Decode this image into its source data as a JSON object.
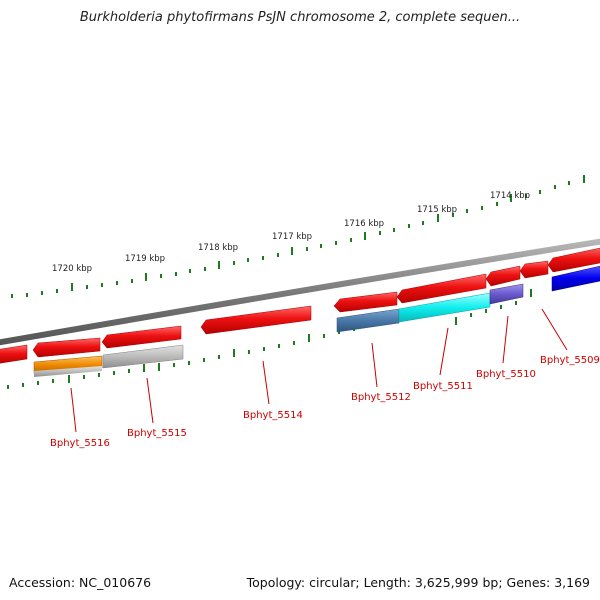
{
  "title": "Burkholderia phytofirmans PsJN chromosome 2, complete sequen...",
  "footer": {
    "accession": "Accession: NC_010676",
    "summary": "Topology: circular; Length: 3,625,999 bp; Genes: 3,169"
  },
  "colors": {
    "backbone": "#7a7a7a",
    "ticks": "#1e7a1e",
    "gene_label": "#cc0000",
    "red_gene": "#ee1111",
    "orange_gene": "#ee8800",
    "grey_gene": "#b8b8b8",
    "steelblue_gene": "#4a78a8",
    "cyan_gene": "#11eeee",
    "slateblue_gene": "#6a5acd",
    "blue_gene": "#0000ee"
  },
  "scale_labels": [
    "1720 kbp",
    "1719 kbp",
    "1718 kbp",
    "1717 kbp",
    "1716 kbp",
    "1715 kbp",
    "1714 kbp"
  ],
  "gene_labels": [
    "Bphyt_5516",
    "Bphyt_5515",
    "Bphyt_5514",
    "Bphyt_5512",
    "Bphyt_5511",
    "Bphyt_5510",
    "Bphyt_5509"
  ]
}
